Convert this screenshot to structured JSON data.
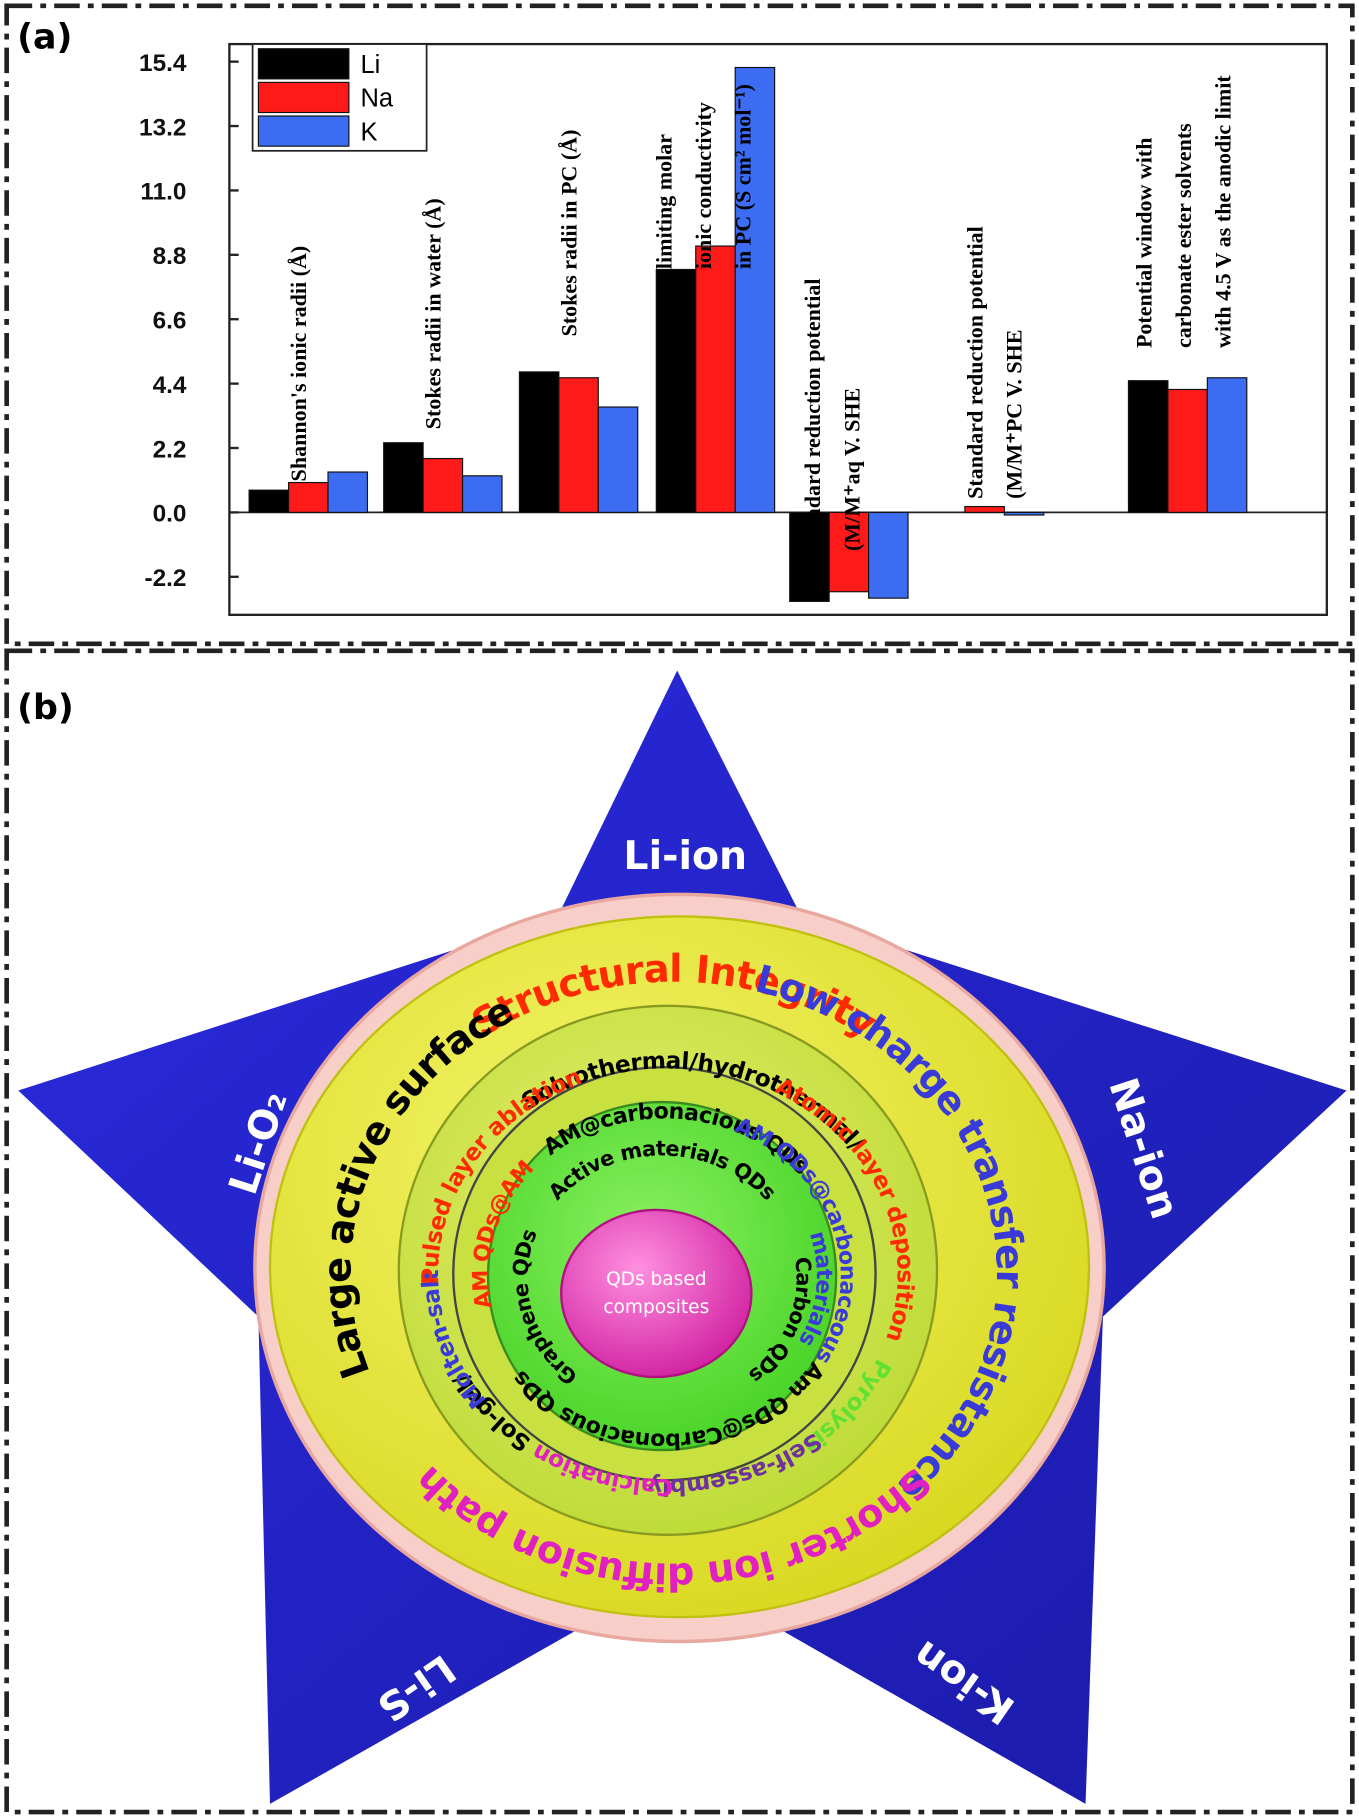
{
  "panel_labels": [
    "(a)",
    "(b)"
  ],
  "chart_data": {
    "type": "bar",
    "categories": [
      [
        "Shannon's ionic radii (Å)"
      ],
      [
        "Stokes radii in water (Å)"
      ],
      [
        "Stokes radii in PC (Å)"
      ],
      [
        "limiting molar",
        "ionic conductivity",
        "in PC (S cm² mol⁻¹)"
      ],
      [
        "Standard reduction potential",
        "(M/M⁺aq V. SHE"
      ],
      [
        "Standard reduction potential",
        "(M/M⁺PC V. SHE"
      ],
      [
        "Potential window with",
        "carbonate ester solvents",
        "with 4.5 V as the anodic limit"
      ]
    ],
    "series": [
      {
        "name": "Li",
        "color": "#000000",
        "values": [
          0.76,
          2.38,
          4.8,
          8.3,
          -3.04,
          0,
          4.5
        ]
      },
      {
        "name": "Na",
        "color": "#ff1a1a",
        "values": [
          1.02,
          1.84,
          4.6,
          9.1,
          -2.71,
          0.2,
          4.2
        ]
      },
      {
        "name": "K",
        "color": "#3b6cf2",
        "values": [
          1.38,
          1.25,
          3.6,
          15.2,
          -2.93,
          -0.09,
          4.6
        ]
      }
    ],
    "ylim": [
      -3.5,
      16.0
    ],
    "yticks": [
      -2.2,
      {
        "value": 0,
        "label": "0.0"
      },
      2.2,
      4.4,
      6.6,
      8.8,
      {
        "value": 11,
        "label": "11.0"
      },
      13.2,
      15.4
    ],
    "legend": "upper-left"
  },
  "diagram": {
    "star_points": [
      "Li-ion",
      "Na-ion",
      "K-ion",
      "Li-S",
      "Li-O₂"
    ],
    "outer_ring": [
      {
        "text": "Structural Integrity",
        "color": "#ff2a00"
      },
      {
        "text": "Low charge transfer resistance",
        "color": "#3a3ad8"
      },
      {
        "text": "Shorter ion diffusion path",
        "color": "#e020c0"
      },
      {
        "text": "Large active surface",
        "color": "#000000"
      }
    ],
    "middle_ring": [
      {
        "text": "Solvothermal/hydrothermal/",
        "color": "#000000"
      },
      {
        "text": "Atomic layer deposition",
        "color": "#ff2a00"
      },
      {
        "text": "Pyrolysis",
        "color": "#60e030"
      },
      {
        "text": "Self-assembly",
        "color": "#7030a0"
      },
      {
        "text": "Calcination",
        "color": "#e020c0"
      },
      {
        "text": "Sol-gel/",
        "color": "#000000"
      },
      {
        "text": "Molten-salt",
        "color": "#3a3ad8"
      },
      {
        "text": "Pulsed layer ablation",
        "color": "#ff2a00"
      }
    ],
    "inner_ring": [
      {
        "text": "AM@carbonacious QDs",
        "color": "#000000"
      },
      {
        "text": "AM QDs@carbonaceous",
        "color": "#3a3ad8"
      },
      {
        "text": "materials",
        "color": "#3a3ad8"
      },
      {
        "text": "Am QDs@Carbonacious QDs",
        "color": "#000000"
      },
      {
        "text": "AM QDs@AM",
        "color": "#ff2a00"
      }
    ],
    "core_ring": [
      {
        "text": "Active materials QDs",
        "color": "#000000"
      },
      {
        "text": "Carbon QDs",
        "color": "#000000"
      },
      {
        "text": "Graphene QDs",
        "color": "#000000"
      }
    ],
    "center": [
      "QDs based",
      "composites"
    ]
  }
}
